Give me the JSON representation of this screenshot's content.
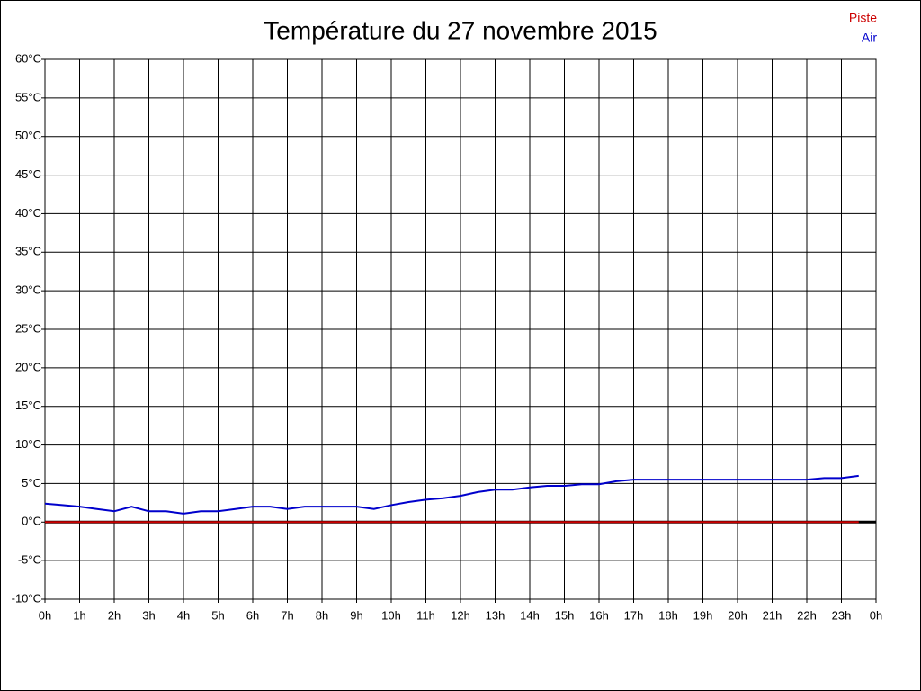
{
  "chart_data": {
    "type": "line",
    "title": "Température du 27 novembre 2015",
    "x": [
      0,
      0.5,
      1,
      1.5,
      2,
      2.5,
      3,
      3.5,
      4,
      4.5,
      5,
      5.5,
      6,
      6.5,
      7,
      7.5,
      8,
      8.5,
      9,
      9.5,
      10,
      10.5,
      11,
      11.5,
      12,
      12.5,
      13,
      13.5,
      14,
      14.5,
      15,
      15.5,
      16,
      16.5,
      17,
      17.5,
      18,
      18.5,
      19,
      19.5,
      20,
      20.5,
      21,
      21.5,
      22,
      22.5,
      23,
      23.5
    ],
    "series": [
      {
        "name": "Piste",
        "color": "#cc0000",
        "values": [
          0,
          0,
          0,
          0,
          0,
          0,
          0,
          0,
          0,
          0,
          0,
          0,
          0,
          0,
          0,
          0,
          0,
          0,
          0,
          0,
          0,
          0,
          0,
          0,
          0,
          0,
          0,
          0,
          0,
          0,
          0,
          0,
          0,
          0,
          0,
          0,
          0,
          0,
          0,
          0,
          0,
          0,
          0,
          0,
          0,
          0,
          0,
          0
        ]
      },
      {
        "name": "Air",
        "color": "#0000cc",
        "values": [
          2.4,
          2.2,
          2.0,
          1.7,
          1.4,
          2.0,
          1.4,
          1.4,
          1.1,
          1.4,
          1.4,
          1.7,
          2.0,
          2.0,
          1.7,
          2.0,
          2.0,
          2.0,
          2.0,
          1.7,
          2.2,
          2.6,
          2.9,
          3.1,
          3.4,
          3.9,
          4.2,
          4.2,
          4.5,
          4.7,
          4.7,
          4.9,
          4.9,
          5.3,
          5.5,
          5.5,
          5.5,
          5.5,
          5.5,
          5.5,
          5.5,
          5.5,
          5.5,
          5.5,
          5.5,
          5.7,
          5.7,
          6.0
        ]
      }
    ],
    "xlim": [
      0,
      24
    ],
    "xticks": [
      {
        "value": 0,
        "label": "0h"
      },
      {
        "value": 1,
        "label": "1h"
      },
      {
        "value": 2,
        "label": "2h"
      },
      {
        "value": 3,
        "label": "3h"
      },
      {
        "value": 4,
        "label": "4h"
      },
      {
        "value": 5,
        "label": "5h"
      },
      {
        "value": 6,
        "label": "6h"
      },
      {
        "value": 7,
        "label": "7h"
      },
      {
        "value": 8,
        "label": "8h"
      },
      {
        "value": 9,
        "label": "9h"
      },
      {
        "value": 10,
        "label": "10h"
      },
      {
        "value": 11,
        "label": "11h"
      },
      {
        "value": 12,
        "label": "12h"
      },
      {
        "value": 13,
        "label": "13h"
      },
      {
        "value": 14,
        "label": "14h"
      },
      {
        "value": 15,
        "label": "15h"
      },
      {
        "value": 16,
        "label": "16h"
      },
      {
        "value": 17,
        "label": "17h"
      },
      {
        "value": 18,
        "label": "18h"
      },
      {
        "value": 19,
        "label": "19h"
      },
      {
        "value": 20,
        "label": "20h"
      },
      {
        "value": 21,
        "label": "21h"
      },
      {
        "value": 22,
        "label": "22h"
      },
      {
        "value": 23,
        "label": "23h"
      },
      {
        "value": 24,
        "label": "0h"
      }
    ],
    "ylim": [
      -10,
      60
    ],
    "yticks": [
      {
        "value": -10,
        "label": "-10°C"
      },
      {
        "value": -5,
        "label": "-5°C"
      },
      {
        "value": 0,
        "label": "0°C"
      },
      {
        "value": 5,
        "label": "5°C"
      },
      {
        "value": 10,
        "label": "10°C"
      },
      {
        "value": 15,
        "label": "15°C"
      },
      {
        "value": 20,
        "label": "20°C"
      },
      {
        "value": 25,
        "label": "25°C"
      },
      {
        "value": 30,
        "label": "30°C"
      },
      {
        "value": 35,
        "label": "35°C"
      },
      {
        "value": 40,
        "label": "40°C"
      },
      {
        "value": 45,
        "label": "45°C"
      },
      {
        "value": 50,
        "label": "50°C"
      },
      {
        "value": 55,
        "label": "55°C"
      },
      {
        "value": 60,
        "label": "60°C"
      }
    ],
    "grid": true
  }
}
